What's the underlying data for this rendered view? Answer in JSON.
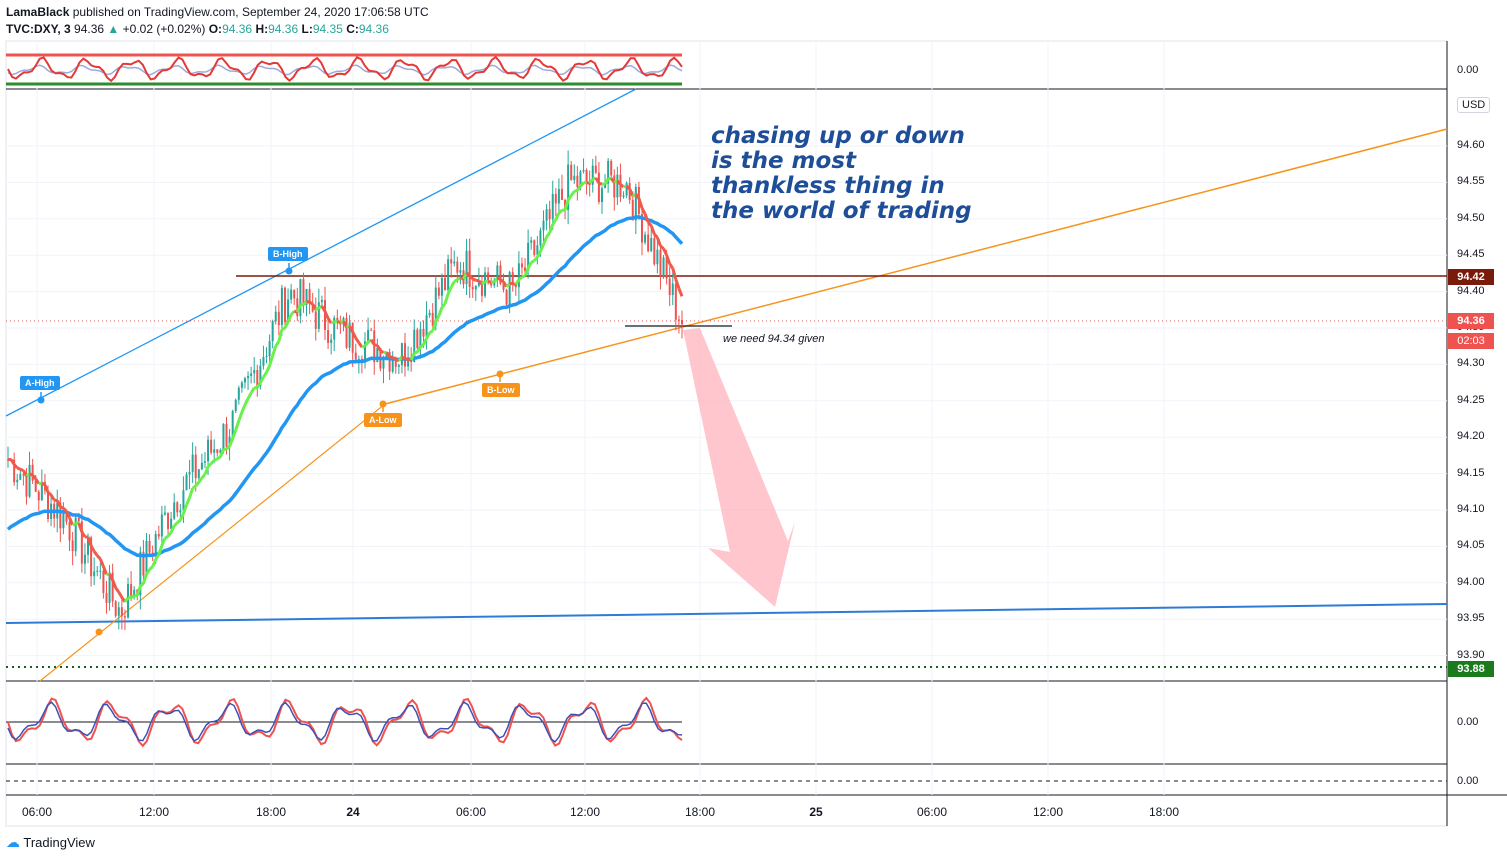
{
  "header": {
    "publisher": "LamaBlack",
    "published_text": "published on TradingView.com, September 24, 2020 17:06:58 UTC",
    "symbol": "TVC:DXY, 3",
    "last": "94.36",
    "change": "+0.02 (+0.02%)",
    "o_label": "O:",
    "o_value": "94.36",
    "h_label": "H:",
    "h_value": "94.36",
    "l_label": "L:",
    "l_value": "94.35",
    "c_label": "C:",
    "c_value": "94.36"
  },
  "price_axis": {
    "currency": "USD",
    "ticks": [
      "94.60",
      "94.55",
      "94.50",
      "94.45",
      "94.40",
      "94.35",
      "94.30",
      "94.25",
      "94.20",
      "94.15",
      "94.10",
      "94.05",
      "94.00",
      "93.95",
      "93.90"
    ],
    "tags": {
      "resistance": "94.42",
      "last_price": "94.36",
      "countdown": "02:03",
      "support": "93.88"
    },
    "colors": {
      "resistance": "#7a1a0a",
      "last_price": "#ef5350",
      "support": "#1b7a1b"
    }
  },
  "time_axis": [
    "06:00",
    "12:00",
    "18:00",
    "24",
    "06:00",
    "12:00",
    "18:00",
    "25",
    "06:00",
    "12:00",
    "18:00"
  ],
  "osc_top": {
    "value_label": "0.00"
  },
  "osc_mid": {
    "value_label": "0.00"
  },
  "osc_bottom": {
    "value_label": "0.00"
  },
  "annotations": {
    "labels": [
      "A-High",
      "B-High",
      "A-Low",
      "B-Low"
    ],
    "note_lines": [
      "chasing up or down",
      "is the most",
      "thankless thing in",
      "the world of trading"
    ],
    "small_note": "we need 94.34 given"
  },
  "chart_data": {
    "type": "line",
    "ylim": [
      93.88,
      94.64
    ],
    "x": [
      "06:00",
      "09:00",
      "12:00",
      "15:00",
      "18:00",
      "21:00",
      "24",
      "03:00",
      "06:00",
      "09:00",
      "12:00",
      "15:00",
      "17:06"
    ],
    "series": [
      {
        "values": [
          94.17,
          94.09,
          93.96,
          94.12,
          94.22,
          94.4,
          94.34,
          94.31,
          94.44,
          94.4,
          94.55,
          94.55,
          94.36
        ]
      }
    ],
    "levels": [
      94.42,
      93.88
    ],
    "colors": {
      "price": "#26a69a",
      "ema_up": "#69f04a",
      "ema_down": "#f05a4a",
      "ma": "#2196f3",
      "channel": "#2196f3",
      "trend": "#f7931a"
    }
  },
  "footer": {
    "brand": "TradingView"
  }
}
